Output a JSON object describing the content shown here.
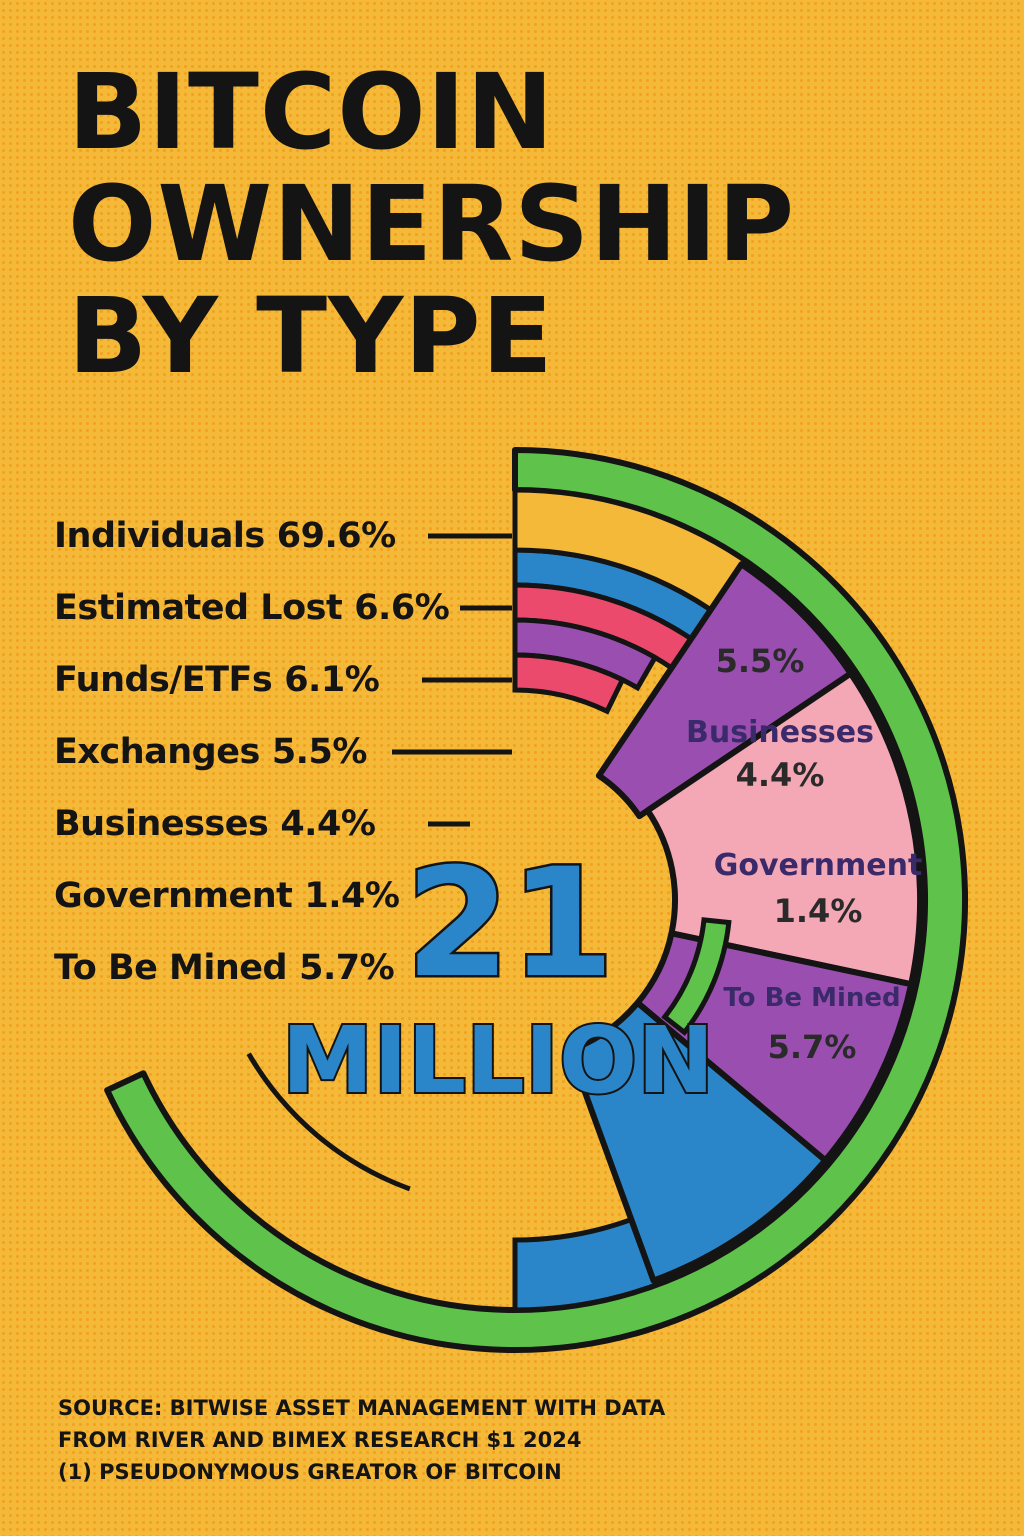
{
  "title_lines": [
    "BITCOIN",
    "OWNERSHIP",
    "BY TYPE"
  ],
  "center": {
    "number": "21",
    "unit": "MILLION"
  },
  "source_lines": [
    "SOURCE: BITWISE ASSET MANAGEMENT WITH DATA",
    "FROM RIVER AND BIMEX RESEARCH  $1 2024",
    "(1) PSEUDONYMOUS GREATOR OF BITCOIN"
  ],
  "colors": {
    "background": "#f5b93a",
    "individuals": "#f5b93a",
    "estimated_lost": "#2a86c8",
    "funds_etfs": "#ec4a6c",
    "exchanges": "#9a4fb0",
    "businesses": "#f4a7b5",
    "government": "#9a4fb0",
    "to_be_mined": "#2a86c8",
    "outer_ring": "#5fc24a",
    "ink": "#141414"
  },
  "chart_data": {
    "type": "pie",
    "style": "donut",
    "title": "BITCOIN OWNERSHIP BY TYPE",
    "total_label": "21 MILLION",
    "legend_placement": "left",
    "categories": [
      "Individuals",
      "Estimated Lost",
      "Funds/ETFs",
      "Exchanges",
      "Businesses",
      "Government",
      "To Be Mined"
    ],
    "values": [
      69.6,
      6.6,
      6.1,
      5.5,
      4.4,
      1.4,
      5.7
    ],
    "legend_labels": [
      "69.6%",
      "6.6%",
      "6.1%",
      "5.5%",
      "4.4%",
      "1.4%",
      "5.7%"
    ],
    "annotations": [
      {
        "name": "",
        "value": "5.5%"
      },
      {
        "name": "Businesses",
        "value": "4.4%"
      },
      {
        "name": "Government",
        "value": "1.4%"
      },
      {
        "name": "To Be Mined",
        "value": "5.7%"
      }
    ]
  }
}
